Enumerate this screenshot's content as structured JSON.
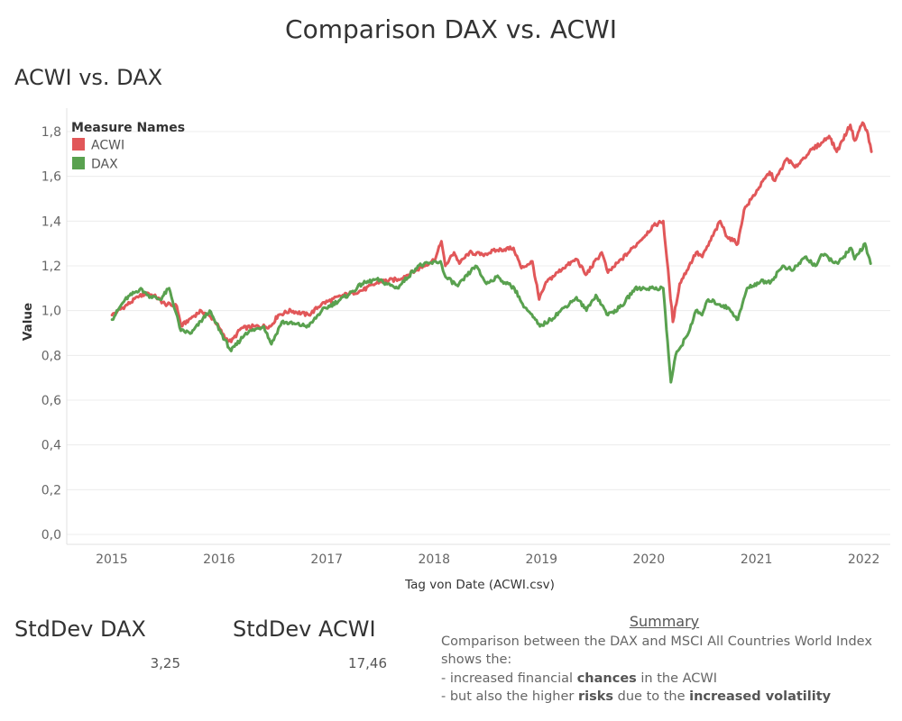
{
  "dashboard": {
    "title": "Comparison DAX vs. ACWI",
    "sheet_title": "ACWI vs. DAX"
  },
  "kpis": {
    "dax": {
      "label": "StdDev DAX",
      "value": "3,25"
    },
    "acwi": {
      "label": "StdDev ACWI",
      "value": "17,46"
    }
  },
  "summary": {
    "heading": "Summary",
    "line1": "Comparison between the DAX and MSCI All Countries World Index shows the:",
    "line2_prefix": "- increased financial ",
    "line2_bold": "chances",
    "line2_suffix": " in the ACWI",
    "line3_prefix": "- but also the higher ",
    "line3_bold1": "risks",
    "line3_mid": " due to the ",
    "line3_bold2": "increased volatility"
  },
  "chart_data": {
    "type": "line",
    "xlabel": "Tag von Date (ACWI.csv)",
    "ylabel": "Value",
    "xlim": [
      "2014-08-01",
      "2022-04-01"
    ],
    "ylim": [
      0,
      1.9
    ],
    "x_ticks": [
      "2015",
      "2016",
      "2017",
      "2018",
      "2019",
      "2020",
      "2021",
      "2022"
    ],
    "y_ticks": [
      "0,0",
      "0,2",
      "0,4",
      "0,6",
      "0,8",
      "1,0",
      "1,2",
      "1,4",
      "1,6",
      "1,8"
    ],
    "y_tick_values": [
      0,
      0.2,
      0.4,
      0.6,
      0.8,
      1.0,
      1.2,
      1.4,
      1.6,
      1.8
    ],
    "grid": true,
    "legend": {
      "title": "Measure Names",
      "position": "top-left"
    },
    "series": [
      {
        "name": "ACWI",
        "color": "#e15759",
        "points": [
          [
            "2015-01-02",
            0.98
          ],
          [
            "2015-02-15",
            1.02
          ],
          [
            "2015-04-01",
            1.06
          ],
          [
            "2015-05-01",
            1.08
          ],
          [
            "2015-06-01",
            1.06
          ],
          [
            "2015-07-01",
            1.03
          ],
          [
            "2015-08-10",
            1.02
          ],
          [
            "2015-08-25",
            0.93
          ],
          [
            "2015-09-20",
            0.96
          ],
          [
            "2015-11-01",
            1.0
          ],
          [
            "2015-12-15",
            0.96
          ],
          [
            "2016-01-20",
            0.88
          ],
          [
            "2016-02-11",
            0.86
          ],
          [
            "2016-03-15",
            0.92
          ],
          [
            "2016-05-01",
            0.93
          ],
          [
            "2016-06-24",
            0.93
          ],
          [
            "2016-07-20",
            0.98
          ],
          [
            "2016-09-01",
            1.0
          ],
          [
            "2016-11-01",
            0.98
          ],
          [
            "2016-12-15",
            1.03
          ],
          [
            "2017-03-01",
            1.07
          ],
          [
            "2017-05-01",
            1.09
          ],
          [
            "2017-07-01",
            1.13
          ],
          [
            "2017-09-01",
            1.14
          ],
          [
            "2017-11-01",
            1.18
          ],
          [
            "2018-01-05",
            1.23
          ],
          [
            "2018-01-26",
            1.31
          ],
          [
            "2018-02-08",
            1.2
          ],
          [
            "2018-03-10",
            1.26
          ],
          [
            "2018-03-28",
            1.21
          ],
          [
            "2018-05-01",
            1.26
          ],
          [
            "2018-06-15",
            1.25
          ],
          [
            "2018-08-01",
            1.27
          ],
          [
            "2018-09-28",
            1.28
          ],
          [
            "2018-10-25",
            1.19
          ],
          [
            "2018-12-01",
            1.22
          ],
          [
            "2018-12-24",
            1.05
          ],
          [
            "2019-01-20",
            1.13
          ],
          [
            "2019-03-15",
            1.19
          ],
          [
            "2019-05-01",
            1.23
          ],
          [
            "2019-06-01",
            1.16
          ],
          [
            "2019-07-25",
            1.26
          ],
          [
            "2019-08-15",
            1.17
          ],
          [
            "2019-10-01",
            1.23
          ],
          [
            "2019-12-01",
            1.31
          ],
          [
            "2020-01-17",
            1.38
          ],
          [
            "2020-02-19",
            1.4
          ],
          [
            "2020-03-23",
            0.95
          ],
          [
            "2020-04-15",
            1.12
          ],
          [
            "2020-06-10",
            1.26
          ],
          [
            "2020-07-01",
            1.24
          ],
          [
            "2020-08-31",
            1.4
          ],
          [
            "2020-09-23",
            1.33
          ],
          [
            "2020-10-30",
            1.3
          ],
          [
            "2020-11-20",
            1.45
          ],
          [
            "2021-01-10",
            1.55
          ],
          [
            "2021-02-15",
            1.62
          ],
          [
            "2021-03-05",
            1.58
          ],
          [
            "2021-04-15",
            1.68
          ],
          [
            "2021-05-12",
            1.64
          ],
          [
            "2021-06-30",
            1.71
          ],
          [
            "2021-08-10",
            1.75
          ],
          [
            "2021-09-05",
            1.78
          ],
          [
            "2021-10-01",
            1.71
          ],
          [
            "2021-11-16",
            1.83
          ],
          [
            "2021-12-01",
            1.76
          ],
          [
            "2021-12-28",
            1.84
          ],
          [
            "2022-01-15",
            1.79
          ],
          [
            "2022-01-27",
            1.71
          ]
        ]
      },
      {
        "name": "DAX",
        "color": "#59a14f",
        "points": [
          [
            "2015-01-02",
            0.96
          ],
          [
            "2015-02-15",
            1.05
          ],
          [
            "2015-04-10",
            1.1
          ],
          [
            "2015-05-01",
            1.07
          ],
          [
            "2015-06-15",
            1.05
          ],
          [
            "2015-07-15",
            1.1
          ],
          [
            "2015-08-24",
            0.91
          ],
          [
            "2015-09-29",
            0.9
          ],
          [
            "2015-11-30",
            1.0
          ],
          [
            "2015-12-15",
            0.96
          ],
          [
            "2016-01-20",
            0.87
          ],
          [
            "2016-02-11",
            0.82
          ],
          [
            "2016-04-01",
            0.9
          ],
          [
            "2016-06-01",
            0.93
          ],
          [
            "2016-06-27",
            0.85
          ],
          [
            "2016-08-01",
            0.95
          ],
          [
            "2016-09-15",
            0.94
          ],
          [
            "2016-11-01",
            0.93
          ],
          [
            "2016-12-15",
            1.0
          ],
          [
            "2017-03-15",
            1.07
          ],
          [
            "2017-05-01",
            1.12
          ],
          [
            "2017-06-20",
            1.14
          ],
          [
            "2017-08-29",
            1.1
          ],
          [
            "2017-11-07",
            1.2
          ],
          [
            "2018-01-23",
            1.22
          ],
          [
            "2018-02-09",
            1.15
          ],
          [
            "2018-03-23",
            1.11
          ],
          [
            "2018-05-22",
            1.2
          ],
          [
            "2018-06-28",
            1.12
          ],
          [
            "2018-08-01",
            1.15
          ],
          [
            "2018-10-01",
            1.1
          ],
          [
            "2018-10-29",
            1.03
          ],
          [
            "2018-12-27",
            0.93
          ],
          [
            "2019-02-01",
            0.96
          ],
          [
            "2019-04-30",
            1.06
          ],
          [
            "2019-06-03",
            1.0
          ],
          [
            "2019-07-05",
            1.07
          ],
          [
            "2019-08-15",
            0.98
          ],
          [
            "2019-10-01",
            1.02
          ],
          [
            "2019-11-15",
            1.1
          ],
          [
            "2020-01-17",
            1.1
          ],
          [
            "2020-02-19",
            1.1
          ],
          [
            "2020-03-16",
            0.68
          ],
          [
            "2020-04-01",
            0.8
          ],
          [
            "2020-05-15",
            0.9
          ],
          [
            "2020-06-09",
            1.0
          ],
          [
            "2020-06-30",
            0.98
          ],
          [
            "2020-07-21",
            1.05
          ],
          [
            "2020-09-30",
            1.01
          ],
          [
            "2020-10-30",
            0.96
          ],
          [
            "2020-11-30",
            1.1
          ],
          [
            "2021-01-15",
            1.13
          ],
          [
            "2021-02-20",
            1.13
          ],
          [
            "2021-03-31",
            1.2
          ],
          [
            "2021-05-05",
            1.18
          ],
          [
            "2021-06-15",
            1.24
          ],
          [
            "2021-07-20",
            1.2
          ],
          [
            "2021-08-13",
            1.25
          ],
          [
            "2021-10-05",
            1.21
          ],
          [
            "2021-11-18",
            1.28
          ],
          [
            "2021-12-01",
            1.23
          ],
          [
            "2022-01-05",
            1.3
          ],
          [
            "2022-01-24",
            1.21
          ]
        ]
      }
    ]
  }
}
